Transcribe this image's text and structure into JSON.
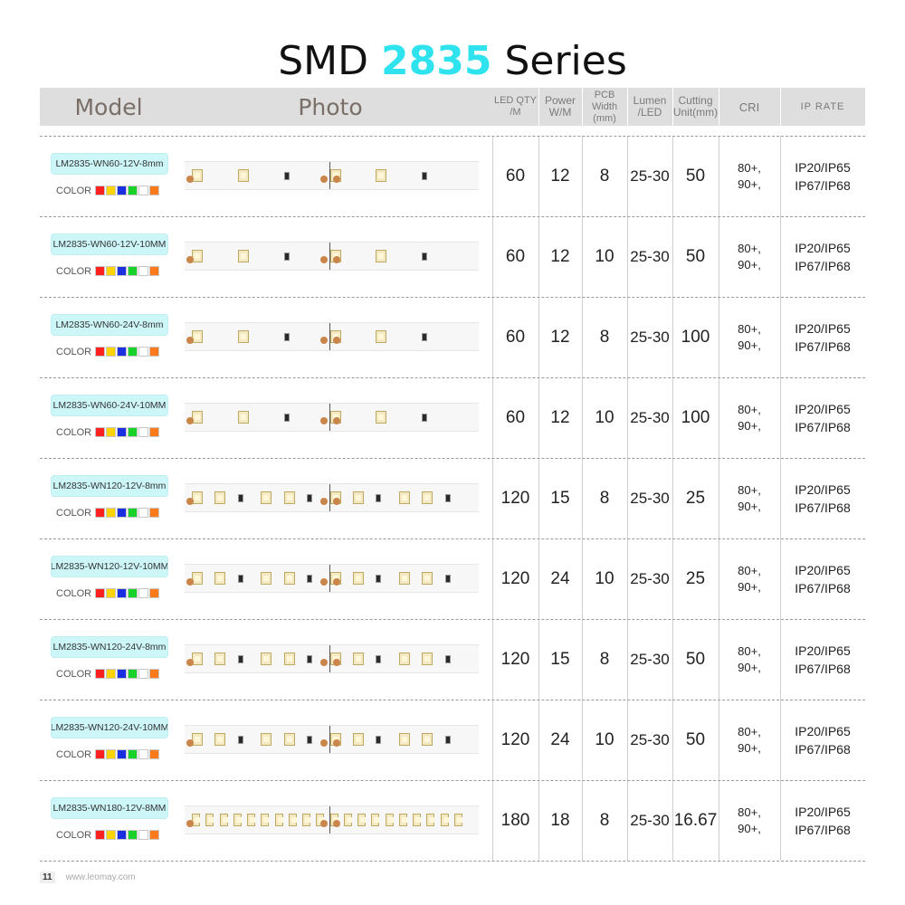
{
  "title": {
    "prefix": "SMD",
    "accent": "2835",
    "suffix": "Series",
    "accent_color": "#2fe3ee"
  },
  "header": {
    "model": "Model",
    "photo": "Photo",
    "led_qty": [
      "LED  QTY",
      "/M"
    ],
    "power": [
      "Power",
      "W/M"
    ],
    "pcb_width": [
      "PCB Width",
      "(mm)"
    ],
    "lumen": [
      "Lumen",
      "/LED"
    ],
    "cutting": [
      "Cutting",
      "Unit(mm)"
    ],
    "cri": "CRI",
    "ip_rate": "IP RATE"
  },
  "color_label": "COLOR",
  "swatch_colors": [
    "#ff2020",
    "#ffd400",
    "#1a2fe0",
    "#18d22a",
    "#ffffff",
    "#ff7a1a"
  ],
  "rows": [
    {
      "model": "LM2835-WN60-12V-8mm",
      "led_qty": "60",
      "power": "12",
      "pcb_width": "8",
      "lumen": "25-30",
      "cutting": "50",
      "cri": [
        "80+,",
        "90+,"
      ],
      "ip": [
        "IP20/IP65",
        "IP67/IP68"
      ]
    },
    {
      "model": "LM2835-WN60-12V-10MM",
      "led_qty": "60",
      "power": "12",
      "pcb_width": "10",
      "lumen": "25-30",
      "cutting": "50",
      "cri": [
        "80+,",
        "90+,"
      ],
      "ip": [
        "IP20/IP65",
        "IP67/IP68"
      ]
    },
    {
      "model": "LM2835-WN60-24V-8mm",
      "led_qty": "60",
      "power": "12",
      "pcb_width": "8",
      "lumen": "25-30",
      "cutting": "100",
      "cri": [
        "80+,",
        "90+,"
      ],
      "ip": [
        "IP20/IP65",
        "IP67/IP68"
      ]
    },
    {
      "model": "LM2835-WN60-24V-10MM",
      "led_qty": "60",
      "power": "12",
      "pcb_width": "10",
      "lumen": "25-30",
      "cutting": "100",
      "cri": [
        "80+,",
        "90+,"
      ],
      "ip": [
        "IP20/IP65",
        "IP67/IP68"
      ]
    },
    {
      "model": "LM2835-WN120-12V-8mm",
      "led_qty": "120",
      "power": "15",
      "pcb_width": "8",
      "lumen": "25-30",
      "cutting": "25",
      "cri": [
        "80+,",
        "90+,"
      ],
      "ip": [
        "IP20/IP65",
        "IP67/IP68"
      ]
    },
    {
      "model": "LM2835-WN120-12V-10MM",
      "led_qty": "120",
      "power": "24",
      "pcb_width": "10",
      "lumen": "25-30",
      "cutting": "25",
      "cri": [
        "80+,",
        "90+,"
      ],
      "ip": [
        "IP20/IP65",
        "IP67/IP68"
      ]
    },
    {
      "model": "LM2835-WN120-24V-8mm",
      "led_qty": "120",
      "power": "15",
      "pcb_width": "8",
      "lumen": "25-30",
      "cutting": "50",
      "cri": [
        "80+,",
        "90+,"
      ],
      "ip": [
        "IP20/IP65",
        "IP67/IP68"
      ]
    },
    {
      "model": "LM2835-WN120-24V-10MM",
      "led_qty": "120",
      "power": "24",
      "pcb_width": "10",
      "lumen": "25-30",
      "cutting": "50",
      "cri": [
        "80+,",
        "90+,"
      ],
      "ip": [
        "IP20/IP65",
        "IP67/IP68"
      ]
    },
    {
      "model": "LM2835-WN180-12V-8MM",
      "led_qty": "180",
      "power": "18",
      "pcb_width": "8",
      "lumen": "25-30",
      "cutting": "16.67",
      "cri": [
        "80+,",
        "90+,"
      ],
      "ip": [
        "IP20/IP65",
        "IP67/IP68"
      ]
    }
  ],
  "footer": {
    "page": "11",
    "site": "www.leomay.com"
  }
}
